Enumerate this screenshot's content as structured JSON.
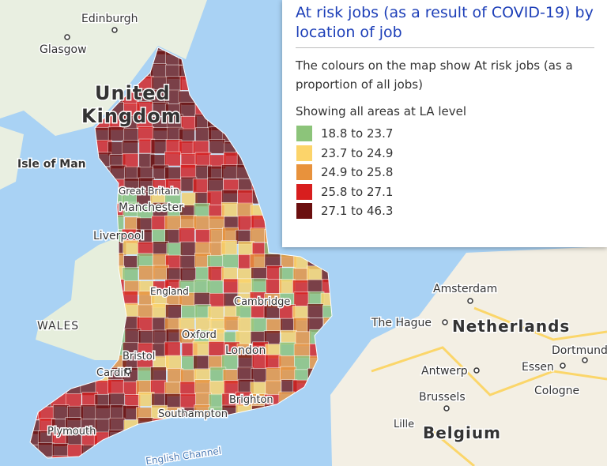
{
  "panel": {
    "title": "At risk jobs (as a result of COVID-19) by location of job",
    "description": "The colours on the map show At risk jobs (as a proportion of all jobs)",
    "level": "Showing all areas at LA level",
    "legend": [
      {
        "label": "18.8 to 23.7",
        "color": "#8cc47a"
      },
      {
        "label": "23.7 to 24.9",
        "color": "#fcd46a"
      },
      {
        "label": "24.9 to 25.8",
        "color": "#e8923c"
      },
      {
        "label": "25.8 to 27.1",
        "color": "#d81e1e"
      },
      {
        "label": "27.1 to 46.3",
        "color": "#6b0f0f"
      }
    ]
  },
  "map_labels": [
    "Edinburgh",
    "Glasgow",
    "United",
    "Kingdom",
    "Isle of Man",
    "Great Britain",
    "Manchester",
    "Liverpool",
    "WALES",
    "England",
    "Cambridge",
    "Oxford",
    "London",
    "Bristol",
    "Cardiff",
    "Southampton",
    "Brighton",
    "Plymouth",
    "English Channel",
    "Amsterdam",
    "The Hague",
    "Netherlands",
    "Dortmund",
    "Essen",
    "Antwerp",
    "Cologne",
    "Brussels",
    "Lille",
    "Belgium"
  ]
}
